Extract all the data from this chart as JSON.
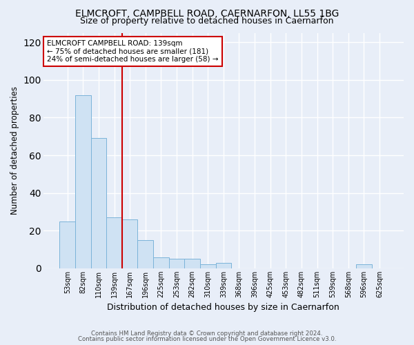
{
  "title1": "ELMCROFT, CAMPBELL ROAD, CAERNARFON, LL55 1BG",
  "title2": "Size of property relative to detached houses in Caernarfon",
  "xlabel": "Distribution of detached houses by size in Caernarfon",
  "ylabel": "Number of detached properties",
  "categories": [
    "53sqm",
    "82sqm",
    "110sqm",
    "139sqm",
    "167sqm",
    "196sqm",
    "225sqm",
    "253sqm",
    "282sqm",
    "310sqm",
    "339sqm",
    "368sqm",
    "396sqm",
    "425sqm",
    "453sqm",
    "482sqm",
    "511sqm",
    "539sqm",
    "568sqm",
    "596sqm",
    "625sqm"
  ],
  "values": [
    25,
    92,
    69,
    27,
    26,
    15,
    6,
    5,
    5,
    2,
    3,
    0,
    0,
    0,
    0,
    0,
    0,
    0,
    0,
    2,
    0
  ],
  "bar_color": "#cfe2f3",
  "bar_edge_color": "#7ab3d9",
  "vline_color": "#cc0000",
  "annotation_text": "ELMCROFT CAMPBELL ROAD: 139sqm\n← 75% of detached houses are smaller (181)\n24% of semi-detached houses are larger (58) →",
  "annotation_box_color": "white",
  "annotation_box_edge": "#cc0000",
  "ylim": [
    0,
    125
  ],
  "yticks": [
    0,
    20,
    40,
    60,
    80,
    100,
    120
  ],
  "footer1": "Contains HM Land Registry data © Crown copyright and database right 2024.",
  "footer2": "Contains public sector information licensed under the Open Government Licence v3.0.",
  "bg_color": "#e8eef8",
  "plot_bg_color": "#e8eef8",
  "grid_color": "white",
  "title1_fontsize": 10,
  "title2_fontsize": 9,
  "ylabel_fontsize": 8.5,
  "xlabel_fontsize": 9
}
